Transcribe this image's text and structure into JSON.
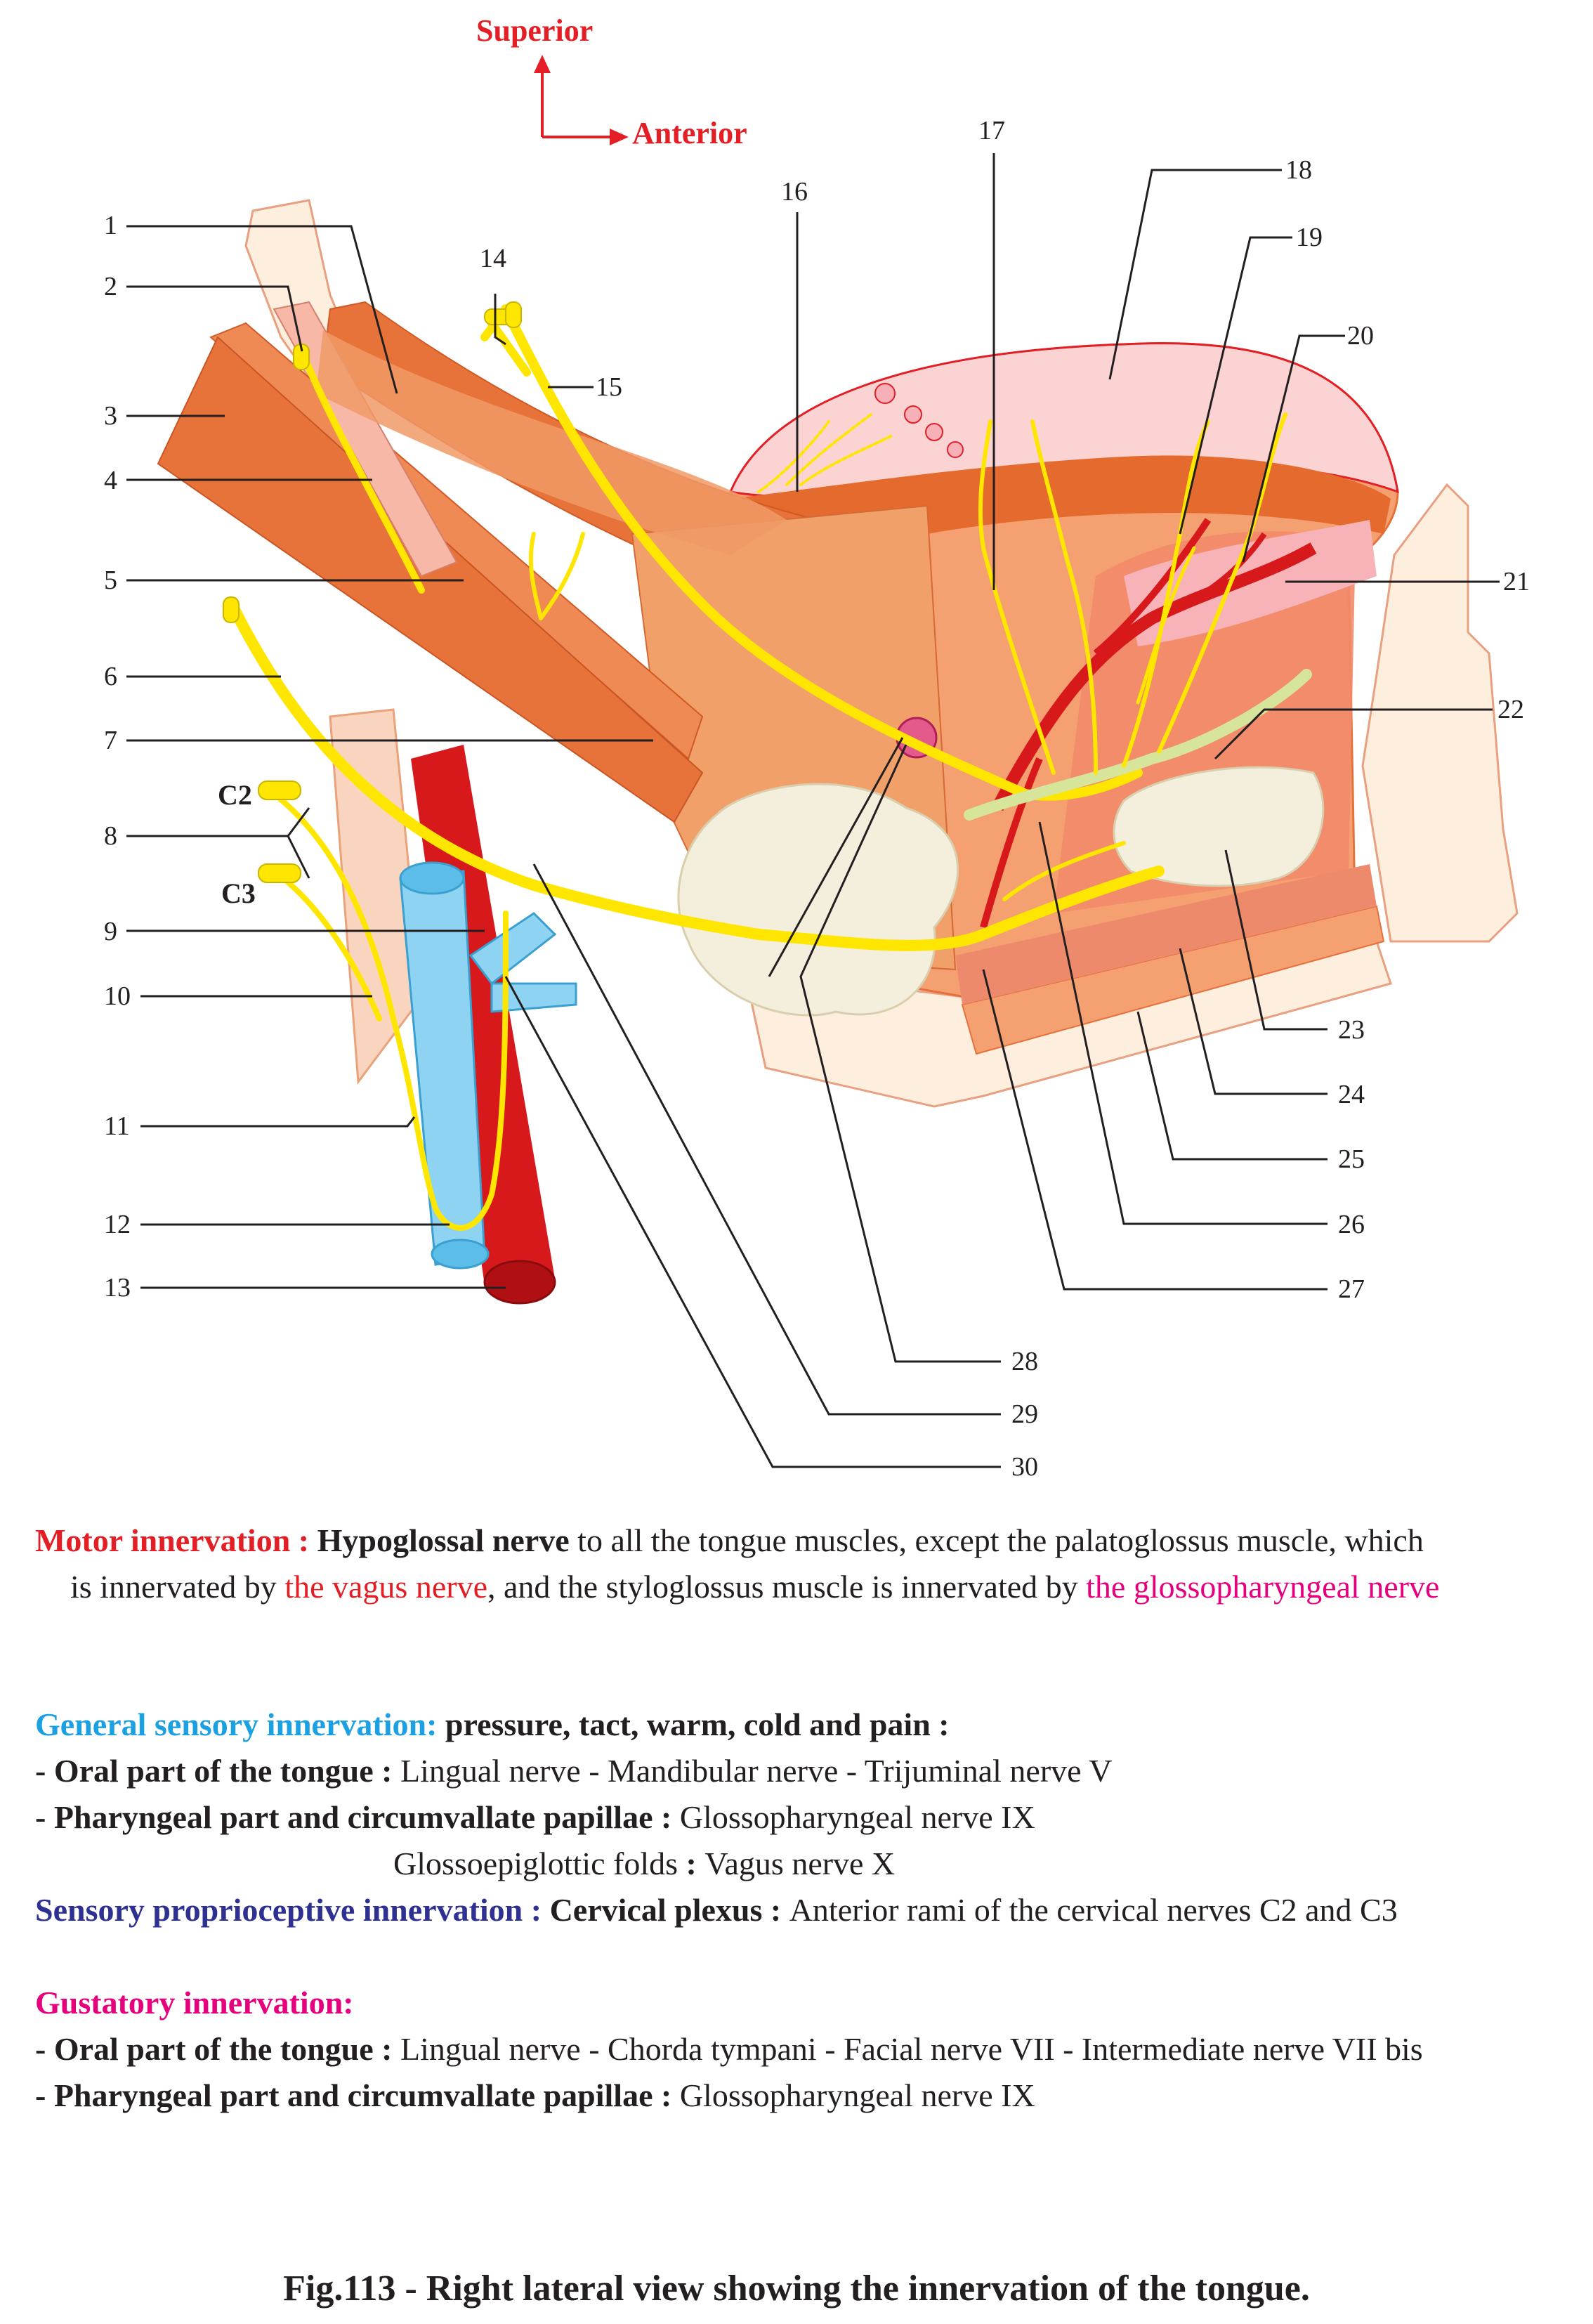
{
  "orientation": {
    "superior": "Superior",
    "anterior": "Anterior"
  },
  "labels": [
    "1",
    "2",
    "3",
    "4",
    "5",
    "6",
    "7",
    "8",
    "9",
    "10",
    "11",
    "12",
    "13",
    "14",
    "15",
    "16",
    "17",
    "18",
    "19",
    "20",
    "21",
    "22",
    "23",
    "24",
    "25",
    "26",
    "27",
    "28",
    "29",
    "30"
  ],
  "cervical": {
    "c2": "C2",
    "c3": "C3"
  },
  "motor": {
    "heading": "Motor innervation :",
    "nerve": "Hypoglossal nerve",
    "text1": " to all the tongue muscles, except the palatoglossus muscle, which",
    "text2": "is innervated by ",
    "vagus": "the vagus nerve",
    "text3": ", and the styloglossus muscle is innervated by ",
    "glosso": "the glossopharyngeal nerve"
  },
  "general": {
    "heading": "General sensory innervation:",
    "sub": " pressure, tact, warm, cold and pain :",
    "oral_label": " - Oral part of the tongue : ",
    "oral_text": "Lingual nerve - Mandibular nerve - Trijuminal nerve V",
    "phar_label": " - Pharyngeal part and circumvallate papillae : ",
    "phar_text": "Glossopharyngeal nerve IX",
    "folds_label": "Glossoepiglottic folds ",
    "folds_colon": ": ",
    "folds_text": "Vagus nerve X"
  },
  "proprio": {
    "heading": "Sensory proprioceptive innervation : ",
    "sub": "Cervical plexus : ",
    "text": "Anterior rami of the cervical nerves C2 and C3"
  },
  "gustatory": {
    "heading": "Gustatory innervation:",
    "oral_label": " - Oral part of the tongue : ",
    "oral_text": "Lingual nerve - Chorda tympani - Facial nerve VII - Intermediate nerve VII bis",
    "phar_label": " - Pharyngeal part and circumvallate papillae : ",
    "phar_text": "Glossopharyngeal nerve IX"
  },
  "caption": "Fig.113 - Right lateral view showing the innervation of the tongue.",
  "colors": {
    "muscle": "#e8733a",
    "muscle_light": "#f4a86d",
    "tongue_pink": "#fbd3d3",
    "nerve": "#ffe600",
    "artery": "#d7191c",
    "vein": "#8fd3f2",
    "bone": "#fdeede",
    "gland": "#f4efdd"
  }
}
